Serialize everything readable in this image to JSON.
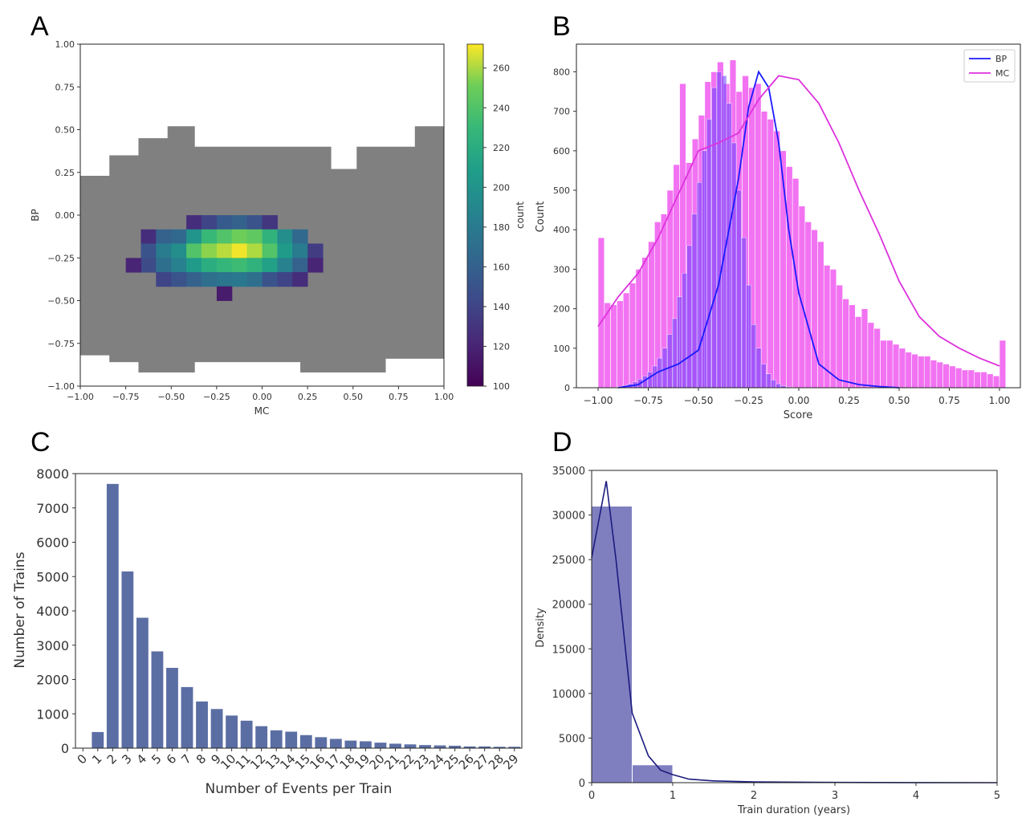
{
  "chart_data": [
    {
      "panel": "A",
      "type": "heatmap",
      "xlabel": "MC",
      "ylabel": "BP",
      "xlim": [
        -1.0,
        1.0
      ],
      "ylim": [
        -1.0,
        1.0
      ],
      "xticks": [
        "−1.00",
        "−0.75",
        "−0.50",
        "−0.25",
        "0.00",
        "0.25",
        "0.50",
        "0.75",
        "1.00"
      ],
      "yticks": [
        "1.00",
        "0.75",
        "0.50",
        "0.25",
        "0.00",
        "−0.25",
        "−0.50",
        "−0.75",
        "−1.00"
      ],
      "grid": false,
      "colorbar": {
        "label": "count",
        "range": [
          100,
          272
        ],
        "ticks": [
          "100",
          "120",
          "140",
          "160",
          "180",
          "200",
          "220",
          "240",
          "260"
        ],
        "colormap": "viridis"
      },
      "background_fill_color": "#808080",
      "bins": 25,
      "core_counts": [
        {
          "x": -0.625,
          "y": -0.125,
          "v": 125
        },
        {
          "x": -0.625,
          "y": -0.208,
          "v": 150
        },
        {
          "x": -0.625,
          "y": -0.292,
          "v": 145
        },
        {
          "x": -0.708,
          "y": -0.292,
          "v": 120
        },
        {
          "x": -0.542,
          "y": -0.125,
          "v": 160
        },
        {
          "x": -0.542,
          "y": -0.208,
          "v": 180
        },
        {
          "x": -0.542,
          "y": -0.292,
          "v": 170
        },
        {
          "x": -0.542,
          "y": -0.375,
          "v": 140
        },
        {
          "x": -0.458,
          "y": -0.125,
          "v": 165
        },
        {
          "x": -0.458,
          "y": -0.208,
          "v": 195
        },
        {
          "x": -0.458,
          "y": -0.292,
          "v": 185
        },
        {
          "x": -0.458,
          "y": -0.375,
          "v": 150
        },
        {
          "x": -0.375,
          "y": -0.042,
          "v": 125
        },
        {
          "x": -0.375,
          "y": -0.125,
          "v": 200
        },
        {
          "x": -0.375,
          "y": -0.208,
          "v": 240
        },
        {
          "x": -0.375,
          "y": -0.292,
          "v": 205
        },
        {
          "x": -0.375,
          "y": -0.375,
          "v": 160
        },
        {
          "x": -0.292,
          "y": -0.042,
          "v": 140
        },
        {
          "x": -0.292,
          "y": -0.125,
          "v": 230
        },
        {
          "x": -0.292,
          "y": -0.208,
          "v": 255
        },
        {
          "x": -0.292,
          "y": -0.292,
          "v": 220
        },
        {
          "x": -0.292,
          "y": -0.375,
          "v": 170
        },
        {
          "x": -0.208,
          "y": -0.042,
          "v": 155
        },
        {
          "x": -0.208,
          "y": -0.125,
          "v": 240
        },
        {
          "x": -0.208,
          "y": -0.208,
          "v": 262
        },
        {
          "x": -0.208,
          "y": -0.292,
          "v": 228
        },
        {
          "x": -0.208,
          "y": -0.375,
          "v": 175
        },
        {
          "x": -0.208,
          "y": -0.458,
          "v": 115
        },
        {
          "x": -0.125,
          "y": -0.042,
          "v": 160
        },
        {
          "x": -0.125,
          "y": -0.125,
          "v": 250
        },
        {
          "x": -0.125,
          "y": -0.208,
          "v": 270
        },
        {
          "x": -0.125,
          "y": -0.292,
          "v": 232
        },
        {
          "x": -0.125,
          "y": -0.375,
          "v": 178
        },
        {
          "x": -0.042,
          "y": -0.042,
          "v": 150
        },
        {
          "x": -0.042,
          "y": -0.125,
          "v": 245
        },
        {
          "x": -0.042,
          "y": -0.208,
          "v": 260
        },
        {
          "x": -0.042,
          "y": -0.292,
          "v": 225
        },
        {
          "x": -0.042,
          "y": -0.375,
          "v": 170
        },
        {
          "x": 0.042,
          "y": -0.042,
          "v": 130
        },
        {
          "x": 0.042,
          "y": -0.125,
          "v": 225
        },
        {
          "x": 0.042,
          "y": -0.208,
          "v": 240
        },
        {
          "x": 0.042,
          "y": -0.292,
          "v": 210
        },
        {
          "x": 0.042,
          "y": -0.375,
          "v": 150
        },
        {
          "x": 0.125,
          "y": -0.125,
          "v": 195
        },
        {
          "x": 0.125,
          "y": -0.208,
          "v": 205
        },
        {
          "x": 0.125,
          "y": -0.292,
          "v": 185
        },
        {
          "x": 0.125,
          "y": -0.375,
          "v": 140
        },
        {
          "x": 0.208,
          "y": -0.125,
          "v": 165
        },
        {
          "x": 0.208,
          "y": -0.208,
          "v": 180
        },
        {
          "x": 0.208,
          "y": -0.292,
          "v": 160
        },
        {
          "x": 0.208,
          "y": -0.375,
          "v": 125
        },
        {
          "x": 0.292,
          "y": -0.208,
          "v": 135
        },
        {
          "x": 0.292,
          "y": -0.292,
          "v": 120
        }
      ]
    },
    {
      "panel": "B",
      "type": "bar",
      "xlabel": "Score",
      "ylabel": "Count",
      "xlim": [
        -1.0,
        1.0
      ],
      "ylim": [
        0,
        870
      ],
      "xticks": [
        "−1.00",
        "−0.75",
        "−0.50",
        "−0.25",
        "0.00",
        "0.25",
        "0.50",
        "0.75",
        "1.00"
      ],
      "yticks": [
        "0",
        "100",
        "200",
        "300",
        "400",
        "500",
        "600",
        "700",
        "800"
      ],
      "legend_position": "top-right",
      "grid": false,
      "series": [
        {
          "name": "BP",
          "color": "#3030ff",
          "bins": [
            -1.0,
            0.6
          ],
          "counts": [
            0,
            0,
            0,
            1,
            3,
            6,
            10,
            15,
            22,
            30,
            40,
            55,
            75,
            100,
            135,
            175,
            230,
            290,
            360,
            440,
            520,
            600,
            680,
            760,
            800,
            790,
            720,
            620,
            500,
            380,
            260,
            160,
            100,
            60,
            35,
            20,
            10,
            5,
            2,
            1,
            0,
            0,
            0,
            0,
            0,
            0,
            0,
            0,
            0,
            0,
            0,
            0,
            0,
            0,
            0,
            0,
            0,
            0,
            0,
            0,
            0,
            0,
            0,
            0,
            0
          ]
        },
        {
          "name": "MC",
          "color": "#ee44ee",
          "bins": [
            -1.0,
            1.0
          ],
          "counts": [
            380,
            215,
            210,
            220,
            240,
            265,
            300,
            330,
            370,
            420,
            440,
            500,
            565,
            770,
            570,
            630,
            690,
            775,
            800,
            825,
            770,
            830,
            750,
            790,
            760,
            770,
            700,
            680,
            650,
            600,
            560,
            530,
            460,
            420,
            400,
            370,
            310,
            300,
            260,
            225,
            210,
            180,
            200,
            165,
            150,
            120,
            120,
            110,
            100,
            90,
            85,
            80,
            80,
            70,
            65,
            60,
            55,
            50,
            45,
            45,
            40,
            40,
            35,
            30,
            120
          ]
        }
      ],
      "kde": [
        {
          "name": "BP",
          "x": [
            -0.9,
            -0.8,
            -0.7,
            -0.6,
            -0.5,
            -0.4,
            -0.3,
            -0.25,
            -0.2,
            -0.15,
            -0.1,
            -0.05,
            0.0,
            0.1,
            0.2,
            0.3,
            0.4,
            0.5
          ],
          "y": [
            0,
            8,
            40,
            60,
            95,
            260,
            530,
            710,
            800,
            760,
            620,
            400,
            240,
            60,
            20,
            8,
            3,
            0
          ]
        },
        {
          "name": "MC",
          "x": [
            -1.0,
            -0.9,
            -0.8,
            -0.7,
            -0.6,
            -0.5,
            -0.4,
            -0.3,
            -0.2,
            -0.1,
            0.0,
            0.1,
            0.2,
            0.3,
            0.4,
            0.5,
            0.6,
            0.7,
            0.8,
            0.9,
            1.0
          ],
          "y": [
            155,
            230,
            290,
            380,
            490,
            600,
            620,
            645,
            730,
            790,
            780,
            720,
            620,
            500,
            390,
            270,
            180,
            130,
            100,
            75,
            55
          ]
        }
      ]
    },
    {
      "panel": "C",
      "type": "bar",
      "xlabel": "Number of Events per Train",
      "ylabel": "Number of Trains",
      "ylim": [
        0,
        8000
      ],
      "yticks": [
        "0",
        "1000",
        "2000",
        "3000",
        "4000",
        "5000",
        "6000",
        "7000",
        "8000"
      ],
      "categories": [
        "0",
        "1",
        "2",
        "3",
        "4",
        "5",
        "6",
        "7",
        "8",
        "9",
        "10",
        "11",
        "12",
        "13",
        "14",
        "15",
        "16",
        "17",
        "18",
        "19",
        "20",
        "21",
        "22",
        "23",
        "24",
        "25",
        "26",
        "27",
        "28",
        "29"
      ],
      "values": [
        0,
        470,
        7700,
        5150,
        3800,
        2820,
        2340,
        1780,
        1360,
        1140,
        950,
        800,
        640,
        520,
        480,
        380,
        320,
        270,
        220,
        200,
        160,
        130,
        110,
        90,
        80,
        70,
        50,
        50,
        40,
        40
      ],
      "color": "#5b6ea4",
      "grid": false
    },
    {
      "panel": "D",
      "type": "bar",
      "xlabel": "Train duration (years)",
      "ylabel": "Density",
      "xlim": [
        0,
        5
      ],
      "ylim": [
        0,
        35000
      ],
      "xticks": [
        "0",
        "1",
        "2",
        "3",
        "4",
        "5"
      ],
      "yticks": [
        "0",
        "5000",
        "10000",
        "15000",
        "20000",
        "25000",
        "30000",
        "35000"
      ],
      "bins": [
        0,
        0.5,
        1.0
      ],
      "counts": [
        31000,
        2000
      ],
      "color": "#7f7fc0",
      "kde": {
        "x": [
          0,
          0.18,
          0.3,
          0.5,
          0.7,
          0.85,
          1.0,
          1.2,
          1.5,
          2.0,
          3.0,
          4.0,
          5.0
        ],
        "y": [
          25200,
          33800,
          25000,
          7800,
          3000,
          1400,
          900,
          400,
          200,
          80,
          30,
          10,
          0
        ]
      },
      "grid": false
    }
  ]
}
